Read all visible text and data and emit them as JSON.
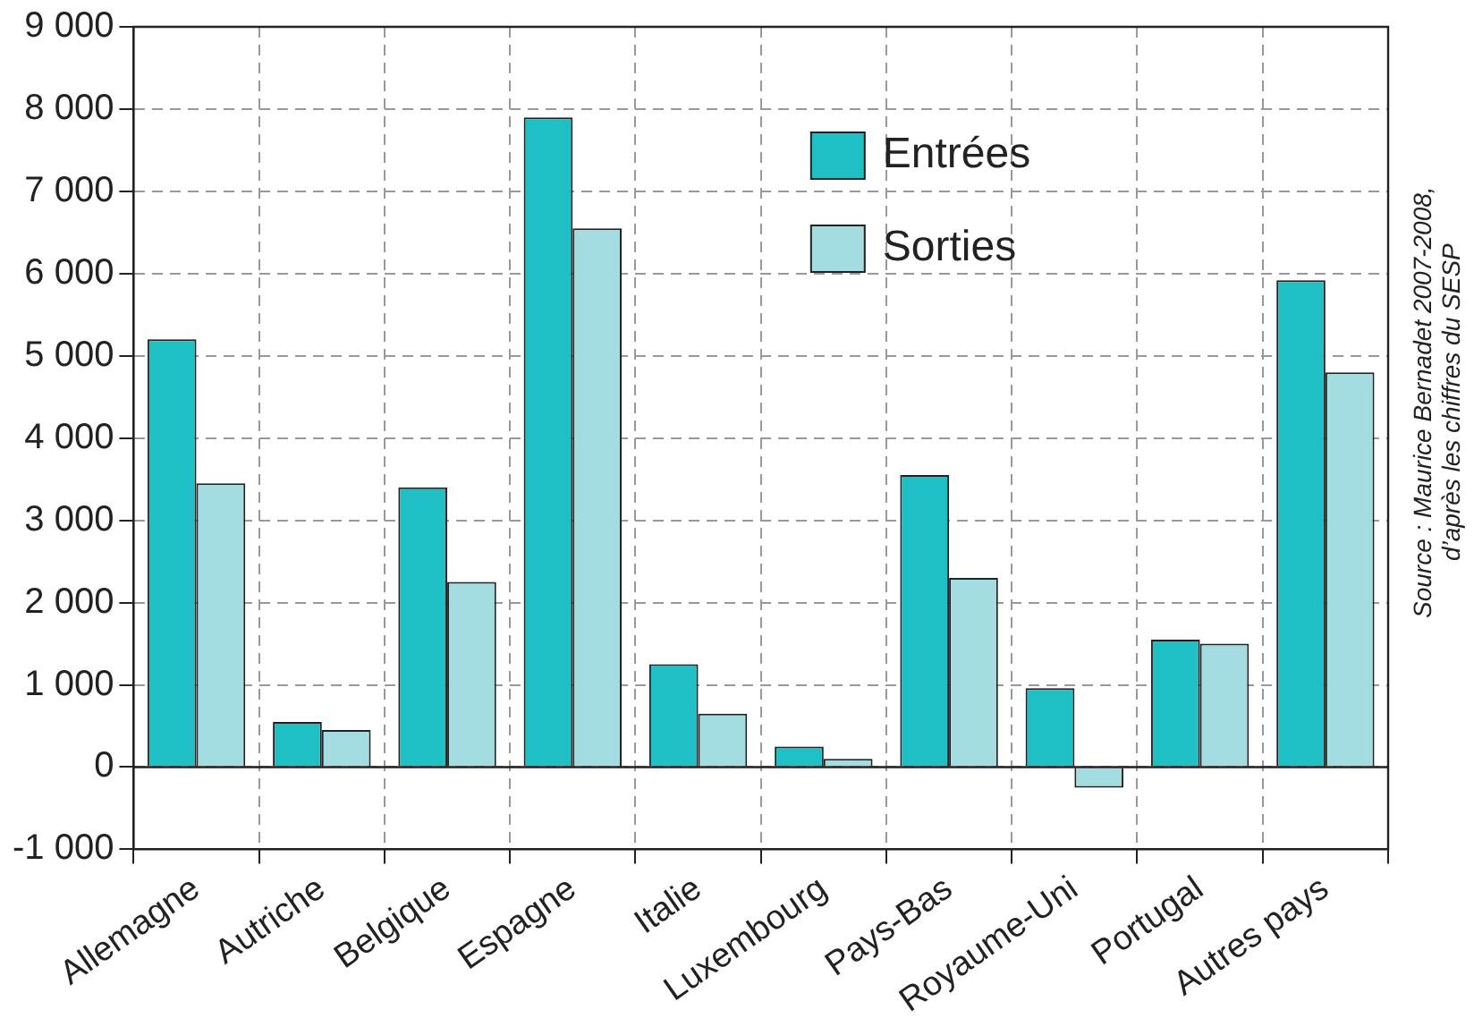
{
  "chart_data": {
    "type": "bar",
    "categories": [
      "Allemagne",
      "Autriche",
      "Belgique",
      "Espagne",
      "Italie",
      "Luxembourg",
      "Pays-Bas",
      "Royaume-Uni",
      "Portugal",
      "Autres pays"
    ],
    "series": [
      {
        "name": "Entrées",
        "color": "#1fbfc6",
        "values": [
          5200,
          550,
          3400,
          7900,
          1250,
          250,
          3550,
          960,
          1550,
          5920
        ]
      },
      {
        "name": "Sorties",
        "color": "#a3dde2",
        "values": [
          3450,
          450,
          2250,
          6550,
          650,
          100,
          2300,
          -250,
          1500,
          4800
        ]
      }
    ],
    "ylim": [
      -1000,
      9000
    ],
    "yticks": [
      {
        "value": -1000,
        "label": "-1 000"
      },
      0,
      {
        "value": 1000,
        "label": "1 000"
      },
      {
        "value": 2000,
        "label": "2 000"
      },
      {
        "value": 3000,
        "label": "3 000"
      },
      {
        "value": 4000,
        "label": "4 000"
      },
      {
        "value": 5000,
        "label": "5 000"
      },
      {
        "value": 6000,
        "label": "6 000"
      },
      {
        "value": 7000,
        "label": "7 000"
      },
      {
        "value": 8000,
        "label": "8 000"
      },
      {
        "value": 9000,
        "label": "9 000"
      }
    ],
    "grid": true,
    "legend": "top right",
    "annotations": [
      "Source : Maurice Bernadet 2007-2008,",
      "d’après les chiffres du SESP"
    ]
  }
}
